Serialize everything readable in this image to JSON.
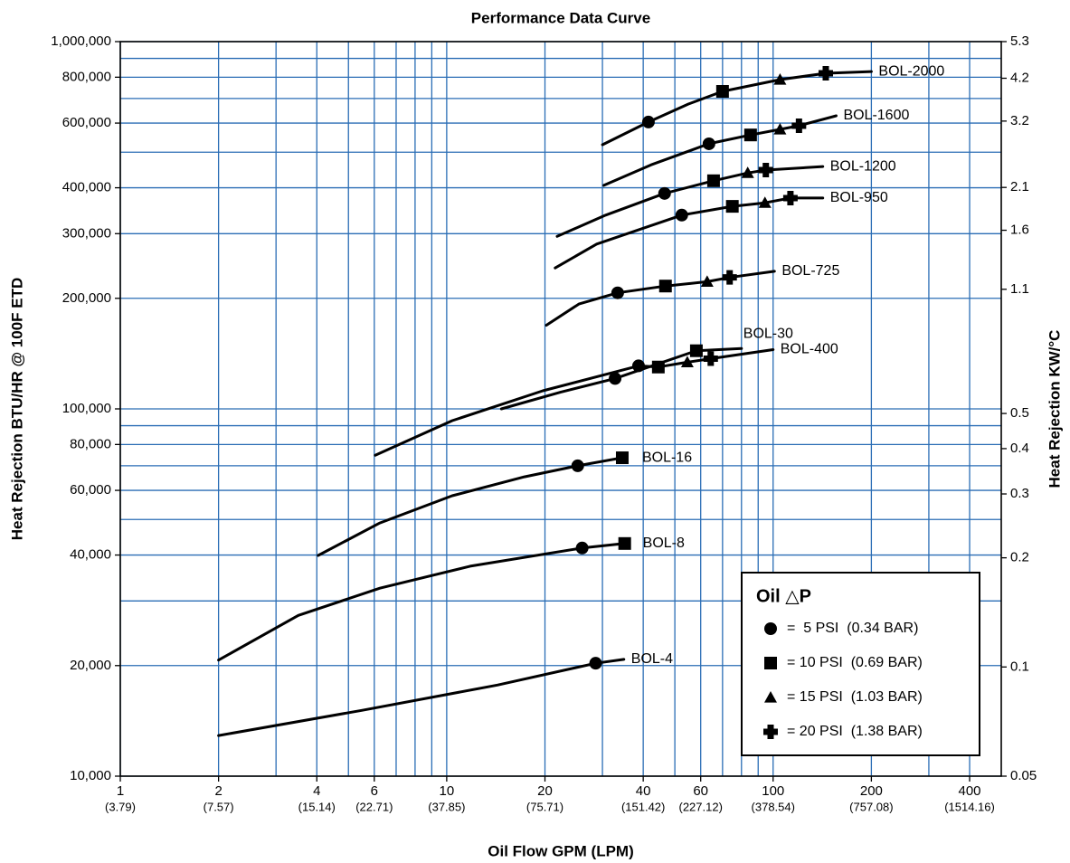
{
  "chart_data": {
    "type": "line",
    "title": "Performance Data Curve",
    "xlabel": "Oil Flow GPM (LPM)",
    "ylabel": "Heat Rejection BTU/HR  @ 100F ETD",
    "y2label": "Heat Rejection KW/°C",
    "log_x": true,
    "log_y": true,
    "grid": true,
    "color": "#000000",
    "grid_color": "#2a6db5",
    "xlim": [
      1,
      500
    ],
    "ylim": [
      10000,
      1000000
    ],
    "y2lim": [
      0.05,
      5.3
    ],
    "xticks": [
      {
        "value": 1,
        "label": "1",
        "sublabel": "(3.79)"
      },
      {
        "value": 2,
        "label": "2",
        "sublabel": "(7.57)"
      },
      {
        "value": 4,
        "label": "4",
        "sublabel": "(15.14)"
      },
      {
        "value": 6,
        "label": "6",
        "sublabel": "(22.71)"
      },
      {
        "value": 10,
        "label": "10",
        "sublabel": "(37.85)"
      },
      {
        "value": 20,
        "label": "20",
        "sublabel": "(75.71)"
      },
      {
        "value": 40,
        "label": "40",
        "sublabel": "(151.42)"
      },
      {
        "value": 60,
        "label": "60",
        "sublabel": "(227.12)"
      },
      {
        "value": 100,
        "label": "100",
        "sublabel": "(378.54)"
      },
      {
        "value": 200,
        "label": "200",
        "sublabel": "(757.08)"
      },
      {
        "value": 400,
        "label": "400",
        "sublabel": "(1514.16)"
      }
    ],
    "xgrid": [
      3,
      5,
      7,
      8,
      9,
      30,
      50,
      70,
      80,
      90,
      300
    ],
    "yticks": [
      {
        "value": 10000,
        "label": "10,000"
      },
      {
        "value": 20000,
        "label": "20,000"
      },
      {
        "value": 40000,
        "label": "40,000"
      },
      {
        "value": 60000,
        "label": "60,000"
      },
      {
        "value": 80000,
        "label": "80,000"
      },
      {
        "value": 100000,
        "label": "100,000"
      },
      {
        "value": 200000,
        "label": "200,000"
      },
      {
        "value": 300000,
        "label": "300,000"
      },
      {
        "value": 400000,
        "label": "400,000"
      },
      {
        "value": 600000,
        "label": "600,000"
      },
      {
        "value": 800000,
        "label": "800,000"
      },
      {
        "value": 1000000,
        "label": "1,000,000"
      }
    ],
    "ygrid": [
      30000,
      50000,
      70000,
      90000,
      500000,
      700000,
      900000
    ],
    "y2ticks": [
      0.05,
      0.1,
      0.2,
      0.3,
      0.4,
      0.5,
      1.1,
      1.6,
      2.1,
      3.2,
      4.2,
      5.3
    ],
    "series": [
      {
        "name": "BOL-2000",
        "x": [
          30,
          41.5,
          55,
          70,
          105,
          145,
          200
        ],
        "values": [
          524000,
          604000,
          676000,
          732000,
          788000,
          820000,
          829000
        ],
        "marker_symbols": [
          null,
          "circle",
          null,
          "square",
          "triangle",
          "plus",
          null
        ]
      },
      {
        "name": "BOL-1600",
        "x": [
          30.3,
          42.3,
          63.6,
          85.3,
          105,
          120,
          156
        ],
        "values": [
          406000,
          462000,
          527000,
          557000,
          577000,
          590000,
          628000
        ],
        "marker_symbols": [
          null,
          null,
          "circle",
          "square",
          "triangle",
          "plus",
          null
        ]
      },
      {
        "name": "BOL-1200",
        "x": [
          21.8,
          30.7,
          46.5,
          65.7,
          83.6,
          95,
          142
        ],
        "values": [
          295000,
          337000,
          386000,
          418000,
          439000,
          447000,
          457000
        ],
        "marker_symbols": [
          null,
          null,
          "circle",
          "square",
          "triangle",
          "plus",
          null
        ]
      },
      {
        "name": "BOL-950",
        "x": [
          21.5,
          28.8,
          52.5,
          75,
          94.4,
          113,
          142
        ],
        "values": [
          242000,
          281000,
          337000,
          356000,
          364000,
          375000,
          375000
        ],
        "marker_symbols": [
          null,
          null,
          "circle",
          "square",
          "triangle",
          "plus",
          null
        ]
      },
      {
        "name": "BOL-725",
        "x": [
          20.2,
          25.4,
          33.4,
          46.8,
          62.8,
          73.6,
          101
        ],
        "values": [
          169000,
          193000,
          207000,
          216000,
          222000,
          228000,
          237000
        ],
        "marker_symbols": [
          null,
          null,
          "circle",
          "square",
          "triangle",
          "plus",
          null
        ]
      },
      {
        "name": "BOL-30",
        "x": [
          14.7,
          22.3,
          32.8,
          58.2,
          80
        ],
        "values": [
          100000,
          111000,
          121000,
          144000,
          146000
        ],
        "marker_symbols": [
          null,
          null,
          "circle",
          "square",
          null
        ]
      },
      {
        "name": "BOL-400",
        "x": [
          6.04,
          10.4,
          19.7,
          38.7,
          44.5,
          54.6,
          64.4,
          100
        ],
        "values": [
          74800,
          92900,
          112000,
          131000,
          130000,
          134000,
          137000,
          145000
        ],
        "marker_symbols": [
          null,
          null,
          null,
          "circle",
          "square",
          "triangle",
          "plus",
          null
        ]
      },
      {
        "name": "BOL-16",
        "x": [
          4.04,
          6.24,
          10.4,
          17.3,
          25.2,
          34.5
        ],
        "values": [
          39900,
          48900,
          58000,
          65300,
          70000,
          73600
        ],
        "marker_symbols": [
          null,
          null,
          null,
          null,
          "circle",
          "square"
        ]
      },
      {
        "name": "BOL-8",
        "x": [
          2,
          3.51,
          6.24,
          11.8,
          26,
          35.1
        ],
        "values": [
          20700,
          27400,
          32500,
          37300,
          41800,
          43000
        ],
        "marker_symbols": [
          null,
          null,
          null,
          null,
          "circle",
          "square"
        ]
      },
      {
        "name": "BOL-4",
        "x": [
          2,
          5.49,
          14.3,
          28.6,
          34.9
        ],
        "values": [
          12900,
          15100,
          17700,
          20300,
          20800
        ],
        "marker_symbols": [
          null,
          null,
          null,
          "circle",
          null
        ]
      }
    ],
    "legend": {
      "position": "lower right",
      "title": "Oil △P",
      "entries": [
        {
          "symbol": "circle",
          "label": "=  5 PSI  (0.34 BAR)"
        },
        {
          "symbol": "square",
          "label": "= 10 PSI  (0.69 BAR)"
        },
        {
          "symbol": "triangle",
          "label": "= 15 PSI  (1.03 BAR)"
        },
        {
          "symbol": "plus",
          "label": "= 20 PSI  (1.38 BAR)"
        }
      ]
    }
  }
}
